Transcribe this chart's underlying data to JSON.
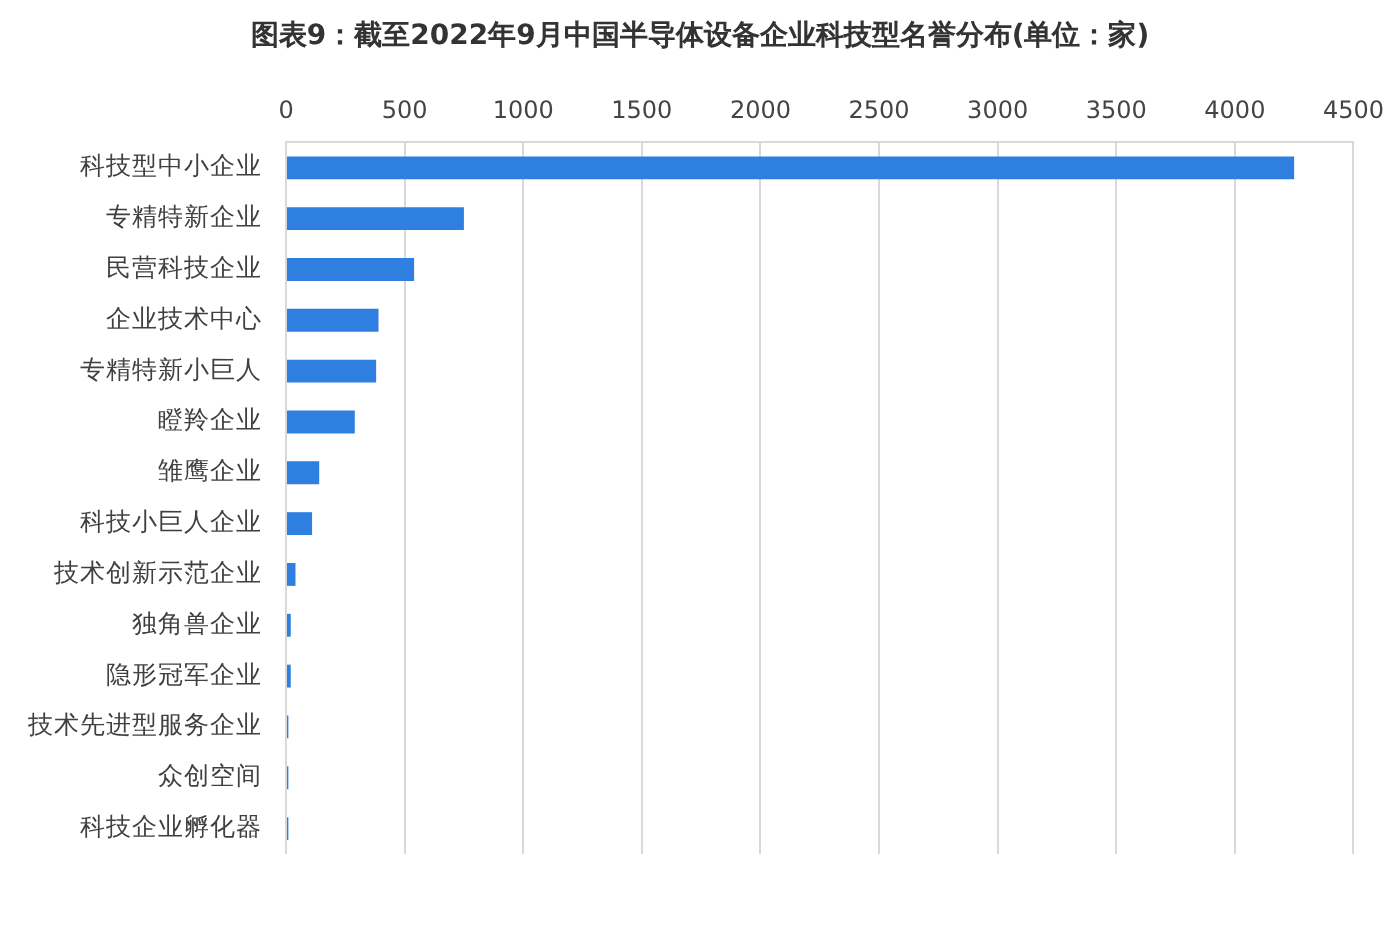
{
  "chart_data": {
    "type": "bar",
    "orientation": "horizontal",
    "title": "图表9：截至2022年9月中国半导体设备企业科技型名誉分布(单位：家)",
    "categories": [
      "科技型中小企业",
      "专精特新企业",
      "民营科技企业",
      "企业技术中心",
      "专精特新小巨人",
      "瞪羚企业",
      "雏鹰企业",
      "科技小巨人企业",
      "技术创新示范企业",
      "独角兽企业",
      "隐形冠军企业",
      "技术先进型服务企业",
      "众创空间",
      "科技企业孵化器"
    ],
    "values": [
      4250,
      750,
      540,
      390,
      380,
      290,
      140,
      110,
      40,
      20,
      20,
      10,
      10,
      10
    ],
    "color": "#2f7fe0",
    "xlim": [
      0,
      4500
    ],
    "xticks": [
      0,
      500,
      1000,
      1500,
      2000,
      2500,
      3000,
      3500,
      4000,
      4500
    ],
    "grid": "x"
  }
}
